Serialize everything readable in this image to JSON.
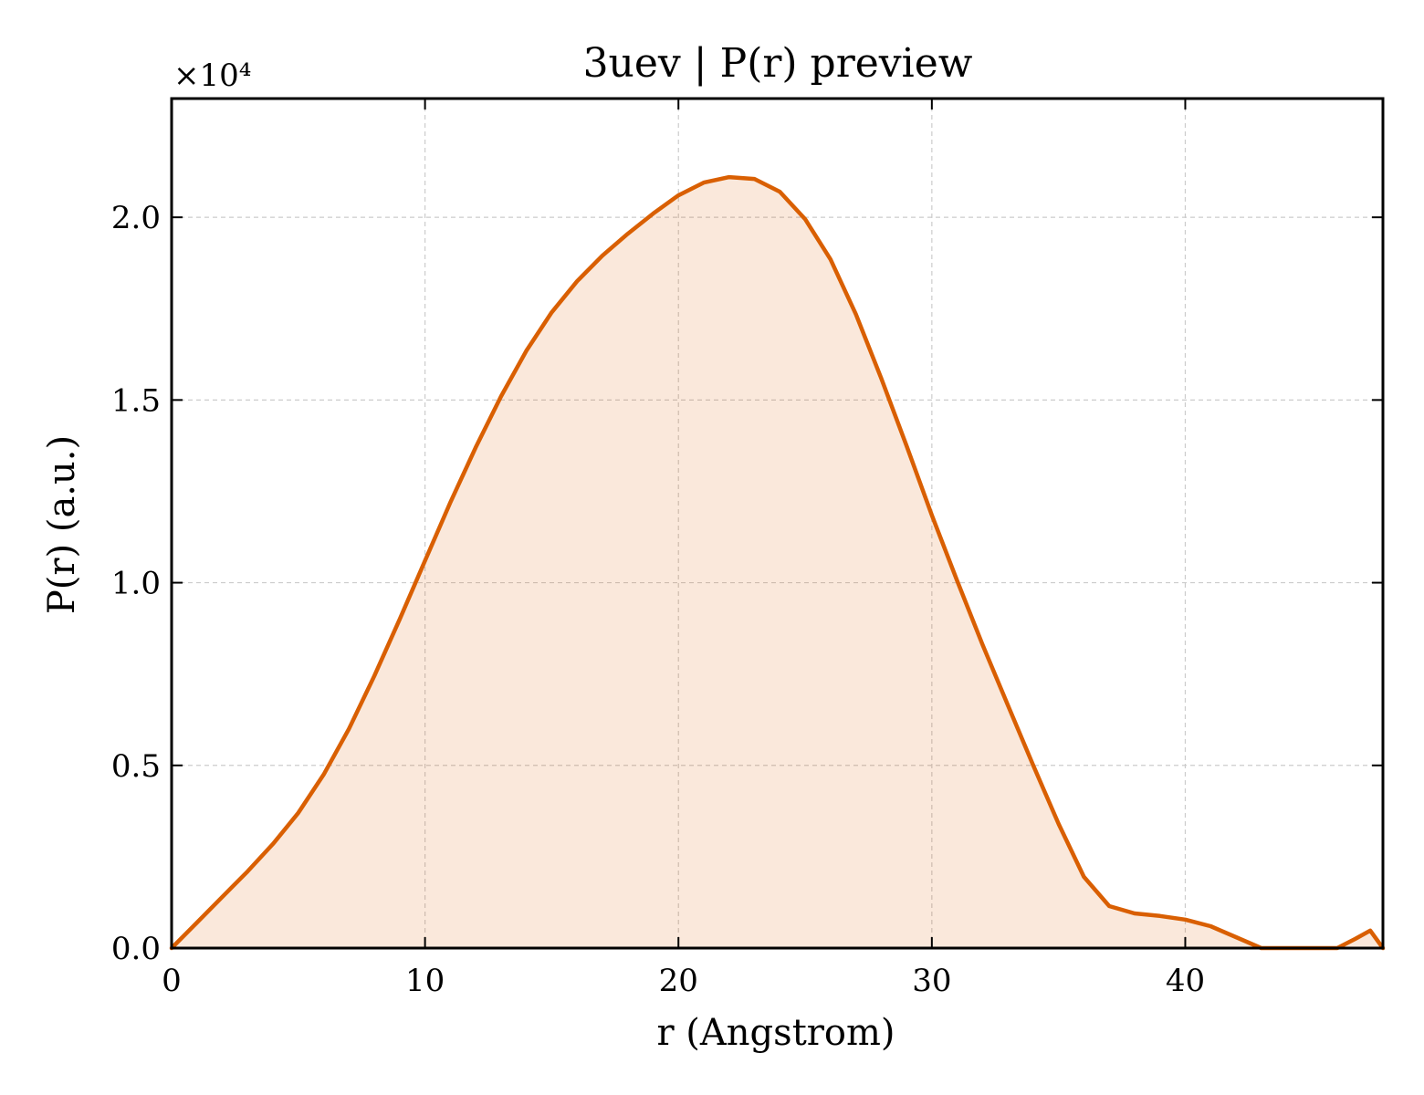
{
  "chart_data": {
    "type": "area",
    "title": "3uev | P(r) preview",
    "xlabel": "r (Angstrom)",
    "ylabel": "P(r) (a.u.)",
    "y_offset_label": "×10⁴",
    "y_scale_factor": 10000,
    "xlim": [
      0,
      47.8
    ],
    "ylim": [
      0,
      23250
    ],
    "xticks": [
      0,
      10,
      20,
      30,
      40
    ],
    "xtick_labels": [
      "0",
      "10",
      "20",
      "30",
      "40"
    ],
    "yticks": [
      0,
      5000,
      10000,
      15000,
      20000
    ],
    "ytick_labels": [
      "0.0",
      "0.5",
      "1.0",
      "1.5",
      "2.0"
    ],
    "grid": true,
    "legend": "none",
    "colors": {
      "line": "#d95f02",
      "fill": "#d95f02",
      "grid": "#cccccc",
      "frame": "#000000"
    },
    "series": [
      {
        "x": [
          0,
          1,
          2,
          3,
          4,
          5,
          6,
          7,
          8,
          9,
          10,
          11,
          12,
          13,
          14,
          15,
          16,
          17,
          18,
          19,
          20,
          21,
          22,
          23,
          24,
          25,
          26,
          27,
          28,
          29,
          30,
          31,
          32,
          33,
          34,
          35,
          36,
          37,
          38,
          39,
          40,
          41,
          42,
          43,
          44,
          44.5,
          46,
          46.7,
          47.3,
          47.8
        ],
        "values": [
          0,
          700,
          1400,
          2100,
          2850,
          3700,
          4750,
          6000,
          7450,
          9000,
          10600,
          12200,
          13700,
          15100,
          16350,
          17400,
          18250,
          18950,
          19550,
          20100,
          20600,
          20950,
          21100,
          21050,
          20700,
          19950,
          18850,
          17350,
          15600,
          13750,
          11850,
          10050,
          8300,
          6650,
          5000,
          3400,
          1950,
          1150,
          950,
          880,
          780,
          600,
          300,
          0,
          0,
          0,
          0,
          250,
          480,
          0
        ]
      }
    ]
  }
}
